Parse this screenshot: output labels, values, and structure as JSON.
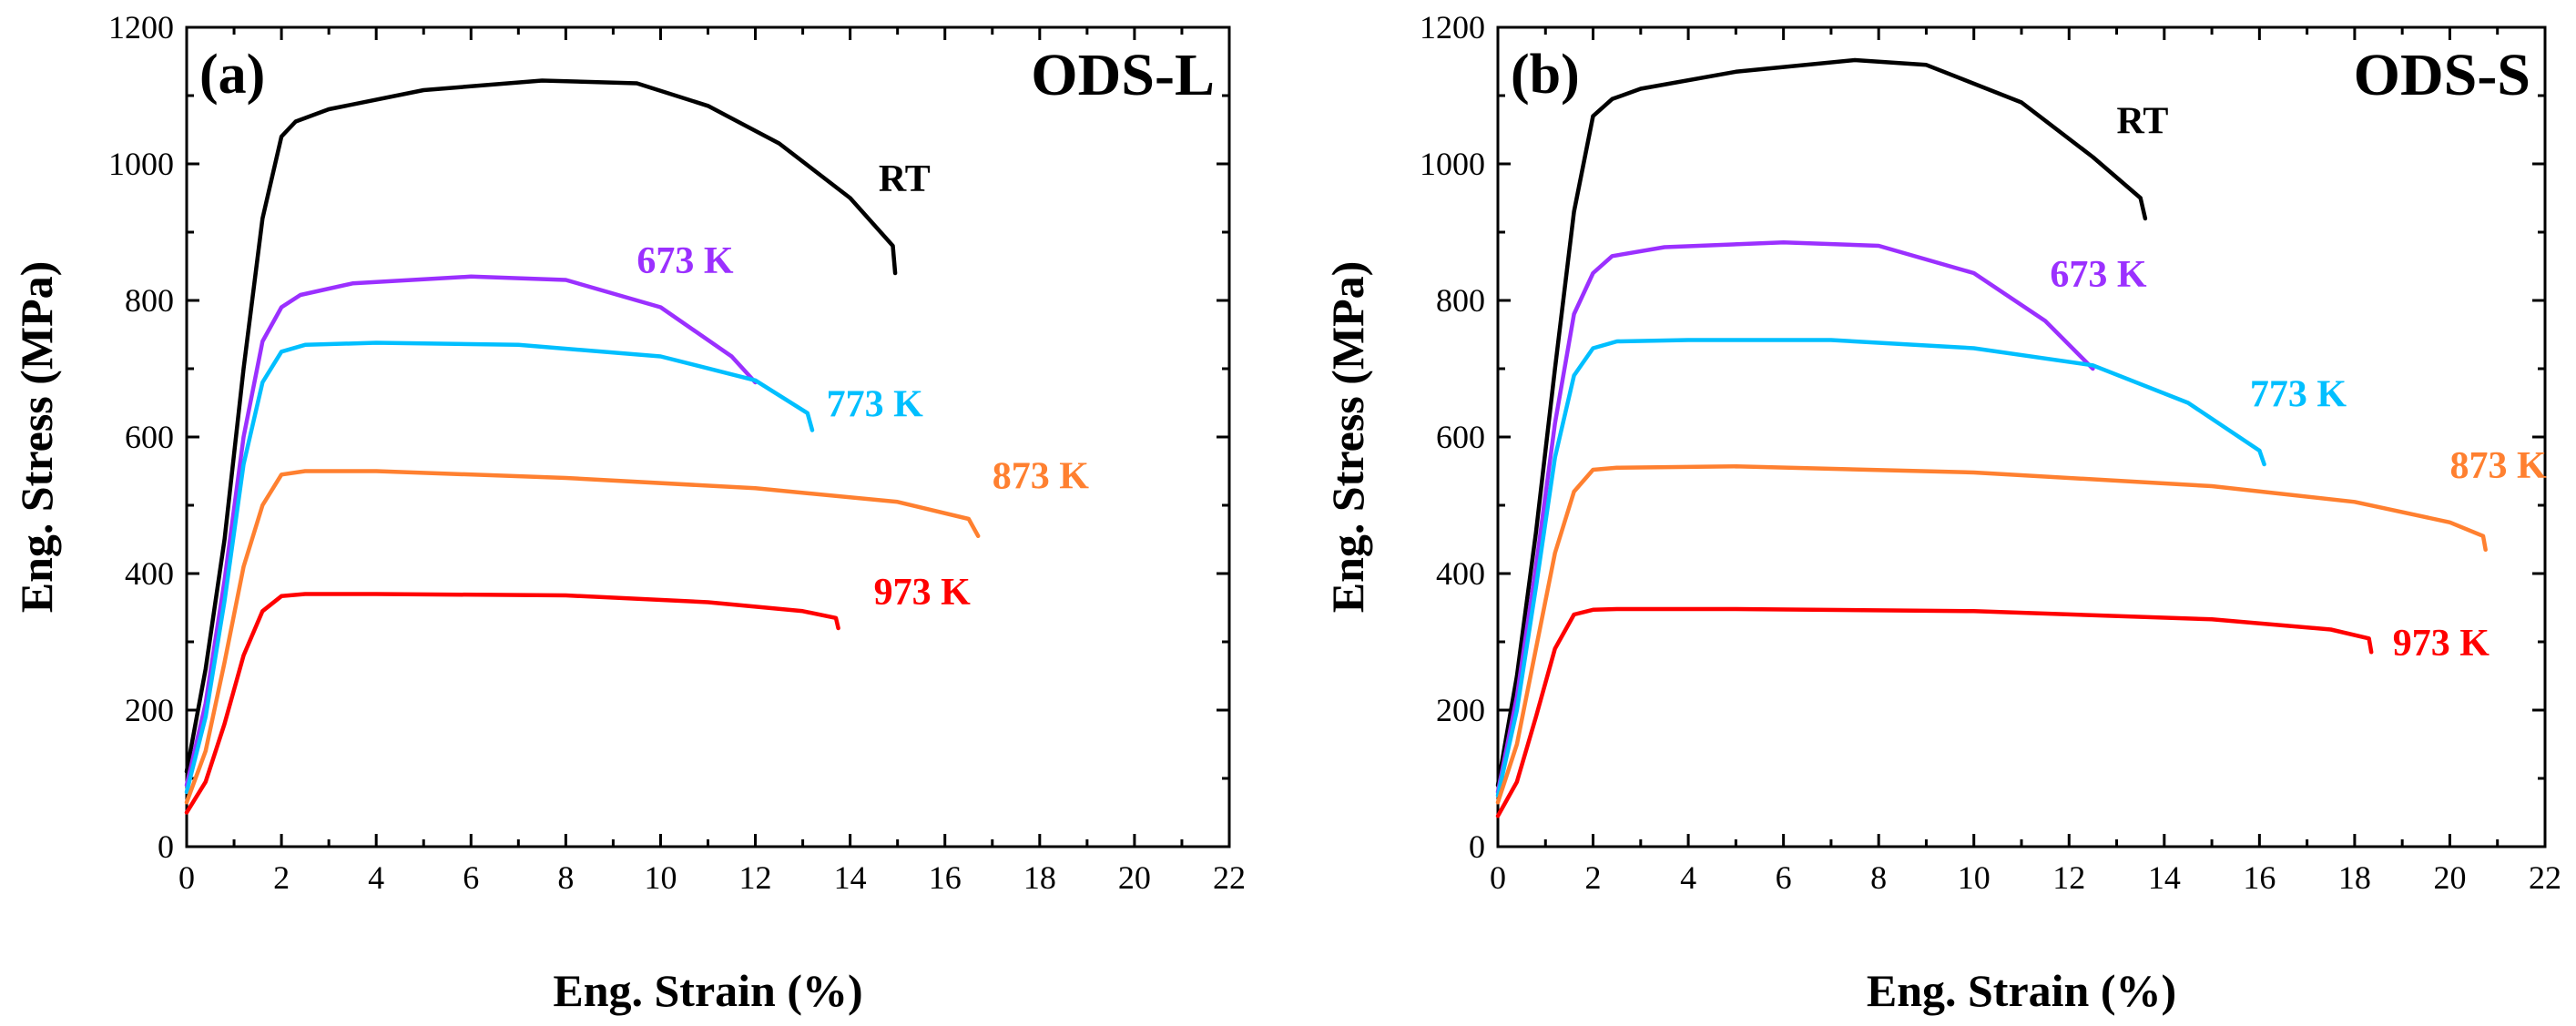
{
  "chart_data": [
    {
      "type": "line",
      "panel_label": "(a)",
      "title": "ODS-L",
      "xlabel": "Eng. Strain (%)",
      "ylabel": "Eng. Stress (MPa)",
      "xlim": [
        0,
        22
      ],
      "ylim": [
        0,
        1200
      ],
      "xticks": [
        0,
        2,
        4,
        6,
        8,
        10,
        12,
        14,
        16,
        18,
        20,
        22
      ],
      "yticks": [
        0,
        200,
        400,
        600,
        800,
        1000,
        1200
      ],
      "grid": false,
      "series": [
        {
          "name": "RT",
          "label": "RT",
          "color": "#000000",
          "label_at": [
            14.6,
            960
          ],
          "x": [
            0,
            0.4,
            0.8,
            1.2,
            1.6,
            2.0,
            2.3,
            3.0,
            5.0,
            7.5,
            9.5,
            11.0,
            12.5,
            14.0,
            14.9,
            14.95
          ],
          "y": [
            110,
            260,
            450,
            700,
            920,
            1040,
            1062,
            1080,
            1108,
            1122,
            1118,
            1085,
            1030,
            950,
            880,
            840
          ]
        },
        {
          "name": "673 K",
          "label": "673 K",
          "color": "#9b30ff",
          "label_at": [
            9.5,
            840
          ],
          "x": [
            0,
            0.4,
            0.8,
            1.2,
            1.6,
            2.0,
            2.4,
            3.5,
            6.0,
            8.0,
            10.0,
            11.5,
            12.0
          ],
          "y": [
            90,
            210,
            390,
            600,
            740,
            790,
            808,
            825,
            835,
            830,
            790,
            718,
            680
          ]
        },
        {
          "name": "773 K",
          "label": "773 K",
          "color": "#00bfff",
          "label_at": [
            13.5,
            630
          ],
          "x": [
            0,
            0.4,
            0.8,
            1.2,
            1.6,
            2.0,
            2.5,
            4.0,
            7.0,
            10.0,
            12.0,
            13.1,
            13.2
          ],
          "y": [
            80,
            190,
            360,
            560,
            680,
            725,
            735,
            738,
            735,
            718,
            683,
            635,
            610
          ]
        },
        {
          "name": "873 K",
          "label": "873 K",
          "color": "#ff8030",
          "label_at": [
            17.0,
            525
          ],
          "x": [
            0,
            0.4,
            0.8,
            1.2,
            1.6,
            2.0,
            2.5,
            4.0,
            8.0,
            12.0,
            15.0,
            16.5,
            16.7
          ],
          "y": [
            65,
            140,
            270,
            410,
            500,
            545,
            550,
            550,
            540,
            525,
            505,
            480,
            455
          ]
        },
        {
          "name": "973 K",
          "label": "973 K",
          "color": "#ff0000",
          "label_at": [
            14.5,
            355
          ],
          "x": [
            0,
            0.4,
            0.8,
            1.2,
            1.6,
            2.0,
            2.5,
            4.0,
            8.0,
            11.0,
            13.0,
            13.7,
            13.75
          ],
          "y": [
            50,
            95,
            180,
            280,
            345,
            367,
            370,
            370,
            368,
            358,
            345,
            335,
            320
          ]
        }
      ]
    },
    {
      "type": "line",
      "panel_label": "(b)",
      "title": "ODS-S",
      "xlabel": "Eng. Strain (%)",
      "ylabel": "Eng. Stress (MPa)",
      "xlim": [
        0,
        22
      ],
      "ylim": [
        0,
        1200
      ],
      "xticks": [
        0,
        2,
        4,
        6,
        8,
        10,
        12,
        14,
        16,
        18,
        20,
        22
      ],
      "yticks": [
        0,
        200,
        400,
        600,
        800,
        1000,
        1200
      ],
      "grid": false,
      "series": [
        {
          "name": "RT",
          "label": "RT",
          "color": "#000000",
          "label_at": [
            13.0,
            1045
          ],
          "x": [
            0,
            0.4,
            0.8,
            1.2,
            1.6,
            2.0,
            2.4,
            3.0,
            5.0,
            7.5,
            9.0,
            11.0,
            12.5,
            13.5,
            13.6
          ],
          "y": [
            90,
            250,
            460,
            700,
            930,
            1070,
            1095,
            1110,
            1135,
            1152,
            1145,
            1090,
            1010,
            950,
            920
          ]
        },
        {
          "name": "673 K",
          "label": "673 K",
          "color": "#9b30ff",
          "label_at": [
            11.6,
            820
          ],
          "x": [
            0,
            0.4,
            0.8,
            1.2,
            1.6,
            2.0,
            2.4,
            3.5,
            6.0,
            8.0,
            10.0,
            11.5,
            12.5
          ],
          "y": [
            80,
            220,
            410,
            620,
            780,
            840,
            865,
            878,
            885,
            880,
            840,
            770,
            700
          ]
        },
        {
          "name": "773 K",
          "label": "773 K",
          "color": "#00bfff",
          "label_at": [
            15.8,
            645
          ],
          "x": [
            0,
            0.4,
            0.8,
            1.2,
            1.6,
            2.0,
            2.5,
            4.0,
            7.0,
            10.0,
            12.5,
            14.5,
            16.0,
            16.1
          ],
          "y": [
            75,
            200,
            380,
            570,
            690,
            730,
            740,
            742,
            742,
            730,
            705,
            650,
            580,
            560
          ]
        },
        {
          "name": "873 K",
          "label": "873 K",
          "color": "#ff8030",
          "label_at": [
            20.0,
            540
          ],
          "x": [
            0,
            0.4,
            0.8,
            1.2,
            1.6,
            2.0,
            2.5,
            5.0,
            10.0,
            15.0,
            18.0,
            20.0,
            20.7,
            20.75
          ],
          "y": [
            65,
            150,
            290,
            430,
            520,
            552,
            555,
            557,
            548,
            528,
            505,
            475,
            455,
            435
          ]
        },
        {
          "name": "973 K",
          "label": "973 K",
          "color": "#ff0000",
          "label_at": [
            18.8,
            280
          ],
          "x": [
            0,
            0.4,
            0.8,
            1.2,
            1.6,
            2.0,
            2.5,
            5.0,
            10.0,
            15.0,
            17.5,
            18.3,
            18.35
          ],
          "y": [
            45,
            95,
            190,
            290,
            340,
            347,
            348,
            348,
            345,
            333,
            318,
            305,
            285
          ]
        }
      ]
    }
  ]
}
